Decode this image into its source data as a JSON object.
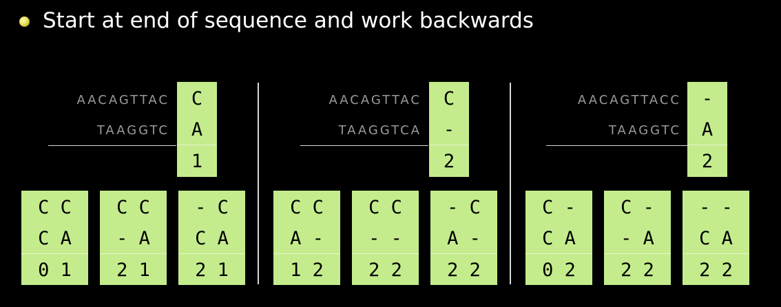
{
  "title": "Start at end of sequence and work backwards",
  "panels": [
    {
      "top_seq": "AACAGTTAC",
      "bottom_seq": "TAAGGTC",
      "column": {
        "top": "C",
        "bottom": "A",
        "score": "1"
      },
      "cards": [
        {
          "top": "C C",
          "bottom": "C A",
          "score": "0 1"
        },
        {
          "top": "C C",
          "bottom": "- A",
          "score": "2 1"
        },
        {
          "top": "- C",
          "bottom": "C A",
          "score": "2 1"
        }
      ]
    },
    {
      "top_seq": "AACAGTTAC",
      "bottom_seq": "TAAGGTCA",
      "column": {
        "top": "C",
        "bottom": "-",
        "score": "2"
      },
      "cards": [
        {
          "top": "C C",
          "bottom": "A -",
          "score": "1 2"
        },
        {
          "top": "C C",
          "bottom": "- -",
          "score": "2 2"
        },
        {
          "top": "- C",
          "bottom": "A -",
          "score": "2 2"
        }
      ]
    },
    {
      "top_seq": "AACAGTTACC",
      "bottom_seq": "TAAGGTC",
      "column": {
        "top": "-",
        "bottom": "A",
        "score": "2"
      },
      "cards": [
        {
          "top": "C -",
          "bottom": "C A",
          "score": "0 2"
        },
        {
          "top": "C -",
          "bottom": "- A",
          "score": "2 2"
        },
        {
          "top": "- -",
          "bottom": "C A",
          "score": "2 2"
        }
      ]
    }
  ]
}
